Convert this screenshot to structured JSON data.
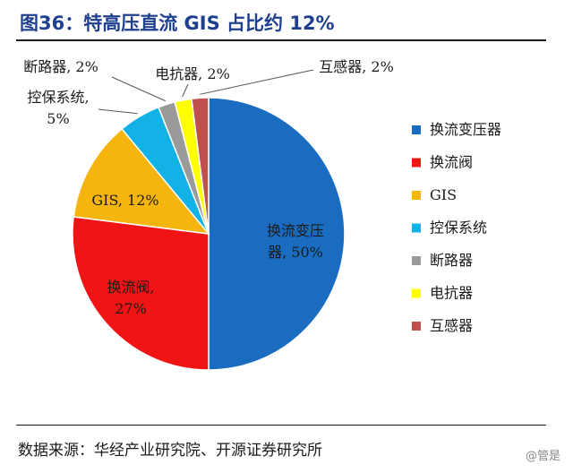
{
  "title": "图36：特高压直流 GIS 占比约 12%",
  "source": "数据来源：华经产业研究院、开源证券研究所",
  "watermark": "@管是",
  "chart_data": {
    "type": "pie",
    "legend_position": "right",
    "slices": [
      {
        "name": "换流变压器",
        "value": 50,
        "label": [
          "换流变压",
          "器, 50%"
        ],
        "color": "#1a6cc0"
      },
      {
        "name": "换流阀",
        "value": 27,
        "label": [
          "换流阀,",
          "27%"
        ],
        "color": "#f01414"
      },
      {
        "name": "GIS",
        "value": 12,
        "label": [
          "GIS, 12%"
        ],
        "color": "#f6b40f"
      },
      {
        "name": "控保系统",
        "value": 5,
        "label": [
          "控保系统,",
          "5%"
        ],
        "color": "#13b2e6"
      },
      {
        "name": "断路器",
        "value": 2,
        "label": [
          "断路器, 2%"
        ],
        "color": "#9a9a9a"
      },
      {
        "name": "电抗器",
        "value": 2,
        "label": [
          "电抗器, 2%"
        ],
        "color": "#ffff00"
      },
      {
        "name": "互感器",
        "value": 2,
        "label": [
          "互感器, 2%"
        ],
        "color": "#c0504d"
      }
    ]
  }
}
